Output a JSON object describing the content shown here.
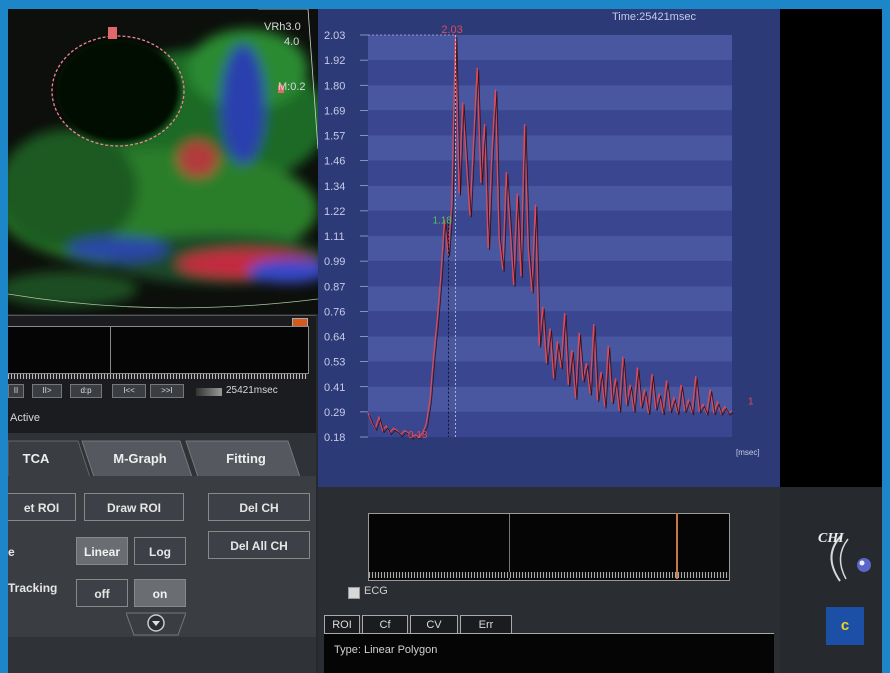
{
  "ultrasound": {
    "overlay_lines": [
      "VRh3.0",
      "4.0",
      "M:0.2"
    ]
  },
  "left_timeline": {
    "time_readout": "25421msec",
    "status": "Active",
    "controls": [
      "II",
      "II>",
      "d:p",
      "I<<",
      ">>I"
    ]
  },
  "tab_panel": {
    "tabs": [
      "TCA",
      "M-Graph",
      "Fitting"
    ],
    "set_roi_label": "et ROI",
    "draw_roi_label": "Draw ROI",
    "del_ch_label": "Del CH",
    "del_all_ch_label": "Del All CH",
    "scale_row_label": "e",
    "linear_label": "Linear",
    "log_label": "Log",
    "tracking_label": "Tracking",
    "off_label": "off",
    "on_label": "on",
    "down_icon": "chevron-down-circle-icon"
  },
  "chart_data": {
    "type": "line",
    "time_label": "Time:25421msec",
    "xlabel": "[msec]",
    "yticks": [
      "2.03",
      "1.92",
      "1.80",
      "1.69",
      "1.57",
      "1.46",
      "1.34",
      "1.22",
      "1.11",
      "0.99",
      "0.87",
      "0.76",
      "0.64",
      "0.53",
      "0.41",
      "0.29",
      "0.18"
    ],
    "ylim": [
      0.18,
      2.03
    ],
    "grid": "horizontal bands",
    "peak_label": "2.03",
    "mid_label": "1.18",
    "baseline_label": "0.18",
    "end_label": "1",
    "series": [
      {
        "color": "#e24a55",
        "x": [
          0,
          0.6,
          1.2,
          1.8,
          2.4,
          3.0,
          3.6,
          4.2,
          4.8,
          5.4,
          6.0,
          6.6,
          7.2,
          7.8,
          8.4,
          9.0,
          9.6,
          10.2,
          10.8,
          11.4,
          12.0,
          12.6,
          13.2,
          13.8,
          14.4,
          15.0,
          15.6,
          16.2,
          16.8,
          17.4,
          18.0,
          18.6,
          19.2,
          19.8,
          20.4,
          21.0,
          21.6,
          22.2,
          22.8,
          23.4,
          24.0,
          24.6,
          25.2,
          25.8,
          26.4,
          27.0,
          27.6,
          28.2,
          28.8,
          29.4,
          30.0,
          30.6,
          31.2,
          31.8,
          32.4,
          33.0,
          33.6,
          34.2,
          34.8,
          35.4,
          36.0,
          36.6,
          37.2,
          37.8,
          38.4,
          39.0,
          39.6,
          40.2,
          40.8,
          41.4,
          42.0,
          42.6,
          43.2,
          43.8,
          44.4,
          45.0,
          45.6,
          46.2,
          46.8,
          47.4,
          48.0,
          48.6,
          49.2,
          49.8,
          50.4,
          51.0,
          51.6,
          52.2,
          52.8,
          53.4,
          54.0,
          54.6,
          55.2,
          55.8,
          56.4,
          57.0,
          57.6,
          58.2,
          58.8,
          59.4,
          60.0
        ],
        "y": [
          0.29,
          0.25,
          0.22,
          0.27,
          0.21,
          0.23,
          0.2,
          0.22,
          0.21,
          0.19,
          0.21,
          0.2,
          0.18,
          0.19,
          0.18,
          0.2,
          0.24,
          0.35,
          0.55,
          0.72,
          0.92,
          1.18,
          1.02,
          1.25,
          2.03,
          1.3,
          1.72,
          1.45,
          1.2,
          1.55,
          1.88,
          1.35,
          1.62,
          1.05,
          1.48,
          1.78,
          1.1,
          0.95,
          1.4,
          1.15,
          0.88,
          1.3,
          0.92,
          1.62,
          1.05,
          0.85,
          1.25,
          0.6,
          0.78,
          0.52,
          0.68,
          0.45,
          0.62,
          0.5,
          0.75,
          0.42,
          0.58,
          0.36,
          0.66,
          0.44,
          0.52,
          0.38,
          0.7,
          0.35,
          0.48,
          0.32,
          0.6,
          0.34,
          0.45,
          0.3,
          0.55,
          0.33,
          0.42,
          0.3,
          0.5,
          0.32,
          0.4,
          0.29,
          0.47,
          0.31,
          0.38,
          0.29,
          0.44,
          0.3,
          0.36,
          0.29,
          0.42,
          0.3,
          0.35,
          0.29,
          0.46,
          0.3,
          0.33,
          0.29,
          0.4,
          0.29,
          0.34,
          0.29,
          0.32,
          0.29,
          0.3
        ]
      }
    ]
  },
  "ecg": {
    "label": "ECG"
  },
  "info_panel": {
    "tabs": [
      "ROI",
      "Cf",
      "CV",
      "Err"
    ],
    "line1": "Type: Linear Polygon"
  },
  "branding": {
    "logo_text": "CHI",
    "panel_letter": "c"
  }
}
